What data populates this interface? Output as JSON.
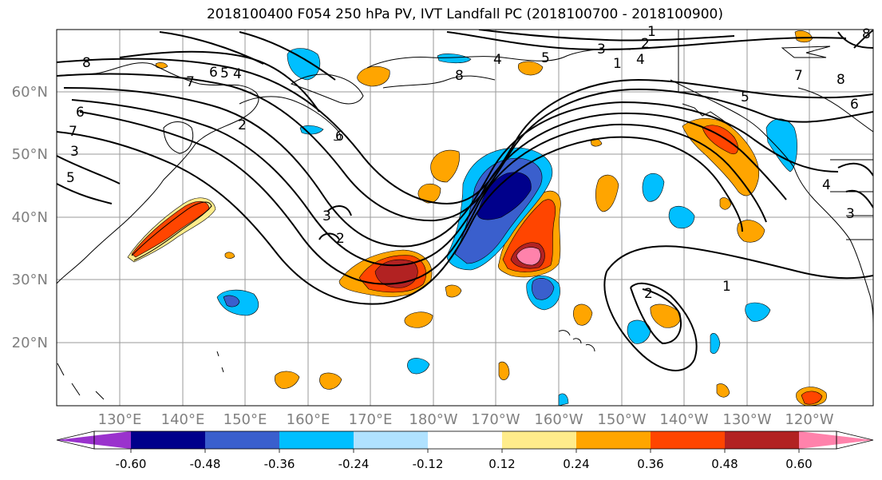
{
  "title": "2018100400 F054 250 hPa PV, IVT Landfall PC (2018100700 - 2018100900)",
  "axes": {
    "x_ticks": [
      "130°E",
      "140°E",
      "150°E",
      "160°E",
      "170°E",
      "180°W",
      "170°W",
      "160°W",
      "150°W",
      "140°W",
      "130°W",
      "120°W"
    ],
    "y_ticks": [
      "60°N",
      "50°N",
      "40°N",
      "30°N",
      "20°N"
    ]
  },
  "colorbar": {
    "colors": [
      "#9a32cd",
      "#00008b",
      "#3a5fcd",
      "#00bfff",
      "#b0e2ff",
      "#ffffff",
      "#ffec8b",
      "#ffa500",
      "#ff4500",
      "#b22222",
      "#ff82ab"
    ],
    "tick_labels": [
      "-0.60",
      "-0.48",
      "-0.36",
      "-0.24",
      "-0.12",
      "0.12",
      "0.24",
      "0.36",
      "0.48",
      "0.60"
    ]
  },
  "contour_labels": [
    "8",
    "7",
    "6",
    "5",
    "4",
    "3",
    "2",
    "1",
    "8",
    "6",
    "5",
    "4",
    "3",
    "2",
    "1",
    "2",
    "3",
    "4",
    "5",
    "6",
    "7",
    "8",
    "1",
    "2",
    "3",
    "4",
    "5",
    "6",
    "7",
    "8"
  ]
}
